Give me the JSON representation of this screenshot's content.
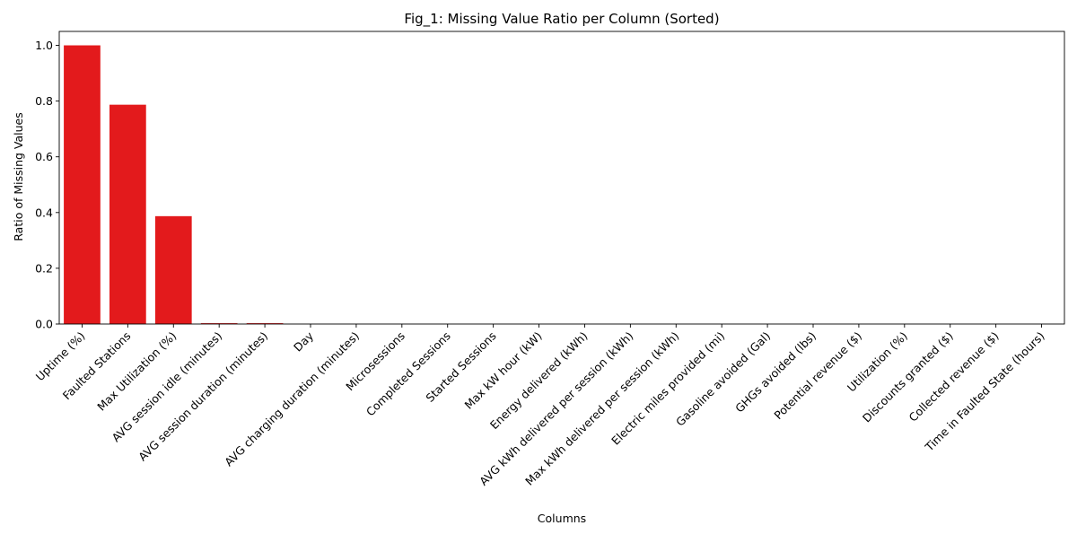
{
  "chart_data": {
    "type": "bar",
    "title": "Fig_1: Missing Value Ratio per Column (Sorted)",
    "xlabel": "Columns",
    "ylabel": "Ratio of Missing Values",
    "categories": [
      "Uptime (%)",
      "Faulted Stations",
      "Max Utilization (%)",
      "AVG session idle (minutes)",
      "AVG session duration (minutes)",
      "Day",
      "AVG charging duration (minutes)",
      "Microsessions",
      "Completed Sessions",
      "Started Sessions",
      "Max kW hour (kW)",
      "Energy delivered (kWh)",
      "AVG kWh delivered per session (kWh)",
      "Max kWh delivered per session (kWh)",
      "Electric miles provided (mi)",
      "Gasoline avoided (Gal)",
      "GHGs avoided (lbs)",
      "Potential revenue ($)",
      "Utilization (%)",
      "Discounts granted ($)",
      "Collected revenue ($)",
      "Time in Faulted State (hours)"
    ],
    "values": [
      1.0,
      0.787,
      0.387,
      0.003,
      0.003,
      0,
      0,
      0,
      0,
      0,
      0,
      0,
      0,
      0,
      0,
      0,
      0,
      0,
      0,
      0,
      0,
      0
    ],
    "ylim": [
      0,
      1.05
    ],
    "yticks": [
      0.0,
      0.2,
      0.4,
      0.6,
      0.8,
      1.0
    ],
    "ytick_labels": [
      "0.0",
      "0.2",
      "0.4",
      "0.6",
      "0.8",
      "1.0"
    ],
    "grid": false,
    "bar_color": "#e31a1c"
  }
}
